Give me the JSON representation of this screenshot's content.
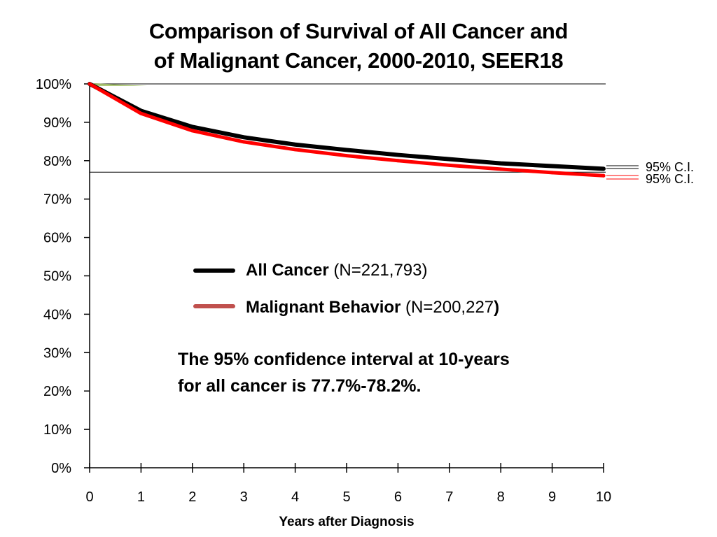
{
  "chart_data": {
    "type": "line",
    "title": [
      "Comparison of Survival of All Cancer and",
      "of Malignant Cancer, 2000-2010, SEER18"
    ],
    "xlabel": "Years after Diagnosis",
    "ylabel": "",
    "xlim": [
      0,
      10
    ],
    "ylim": [
      0,
      100
    ],
    "x_ticks": [
      "0",
      "1",
      "2",
      "3",
      "4",
      "5",
      "6",
      "7",
      "8",
      "9",
      "10"
    ],
    "y_ticks": [
      "0%",
      "10%",
      "20%",
      "30%",
      "40%",
      "50%",
      "60%",
      "70%",
      "80%",
      "90%",
      "100%"
    ],
    "x": [
      0,
      1,
      2,
      3,
      4,
      5,
      6,
      7,
      8,
      9,
      10
    ],
    "series": [
      {
        "name": "All Cancer",
        "n_label": "(N=221,793)",
        "color": "#000000",
        "values": [
          100,
          93.0,
          88.8,
          86.1,
          84.2,
          82.8,
          81.5,
          80.4,
          79.3,
          78.6,
          77.9
        ]
      },
      {
        "name": "Malignant Behavior",
        "n_label": "(N=200,227)",
        "color": "#ff0000",
        "values": [
          100,
          92.3,
          87.8,
          84.9,
          82.9,
          81.3,
          80.0,
          78.8,
          77.8,
          76.9,
          76.1
        ]
      }
    ],
    "reference_lines": [
      100,
      77
    ]
  },
  "legend": {
    "all_cancer": {
      "name": "All Cancer",
      "n": "(N=221,793)",
      "color": "#000000"
    },
    "malignant": {
      "name": "Malignant Behavior",
      "n": "(N=200,227",
      "close": ")",
      "color": "#c0504d"
    }
  },
  "ci_labels": [
    "95% C.I.",
    "95% C.I."
  ],
  "note": [
    "The 95% confidence interval at 10-years",
    "for all cancer is 77.7%-78.2%."
  ]
}
